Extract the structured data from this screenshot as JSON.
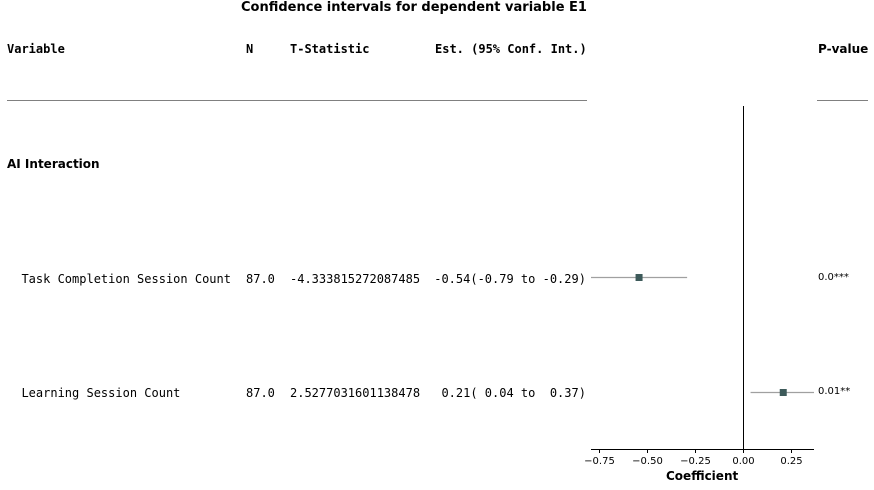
{
  "chart_data": {
    "type": "forest",
    "title": "Confidence intervals for dependent variable E1",
    "columns": {
      "variable": "Variable",
      "n": "N",
      "t_statistic": "T-Statistic",
      "estimate": "Est. (95% Conf. Int.)",
      "p_value": "P-value"
    },
    "group_label": "AI Interaction",
    "rows": [
      {
        "variable": "  Task Completion Session Count",
        "n": "87.0",
        "t_statistic": "-4.333815272087485",
        "estimate_text": " -0.54(-0.79 to -0.29)",
        "p_value": "0.0***",
        "est": -0.54,
        "lo": -0.79,
        "hi": -0.29
      },
      {
        "variable": "  Learning Session Count",
        "n": "87.0",
        "t_statistic": "2.5277031601138478",
        "estimate_text": "  0.21( 0.04 to  0.37)",
        "p_value": "0.01**",
        "est": 0.21,
        "lo": 0.04,
        "hi": 0.37
      }
    ],
    "xlabel": "Coefficient",
    "xlim": [
      -0.79,
      0.37
    ],
    "xticks": [
      -0.75,
      -0.5,
      -0.25,
      0.0,
      0.25
    ],
    "xtick_labels": [
      "−0.75",
      "−0.50",
      "−0.25",
      "0.00",
      "0.25"
    ],
    "reference_line": 0.0,
    "marker_color": "#3d5a5a",
    "ci_color": "#a0a0a0"
  }
}
